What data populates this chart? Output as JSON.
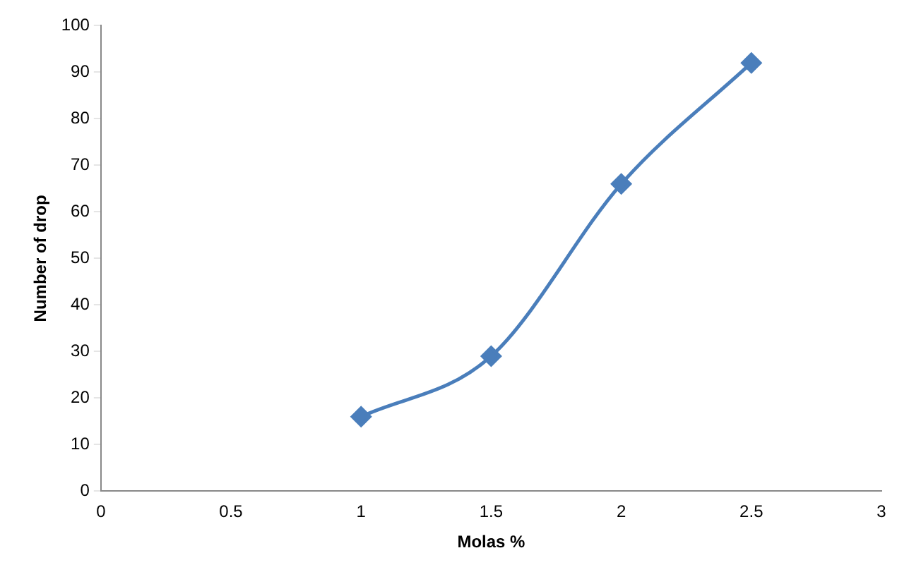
{
  "chart_data": {
    "type": "line",
    "xlabel": "Molas %",
    "ylabel": "Number of drop",
    "x": [
      1,
      1.5,
      2,
      2.5
    ],
    "series": [
      {
        "color": "#4a7ebb",
        "values": [
          16,
          29,
          66,
          92
        ]
      }
    ],
    "xlim": [
      0,
      3
    ],
    "xticks": [
      0,
      0.5,
      1,
      1.5,
      2,
      2.5,
      3
    ],
    "ylim": [
      0,
      100
    ],
    "yticks": [
      0,
      10,
      20,
      30,
      40,
      50,
      60,
      70,
      80,
      90,
      100
    ],
    "grid": false,
    "legend": false,
    "marker": "diamond",
    "line_style": "solid"
  }
}
